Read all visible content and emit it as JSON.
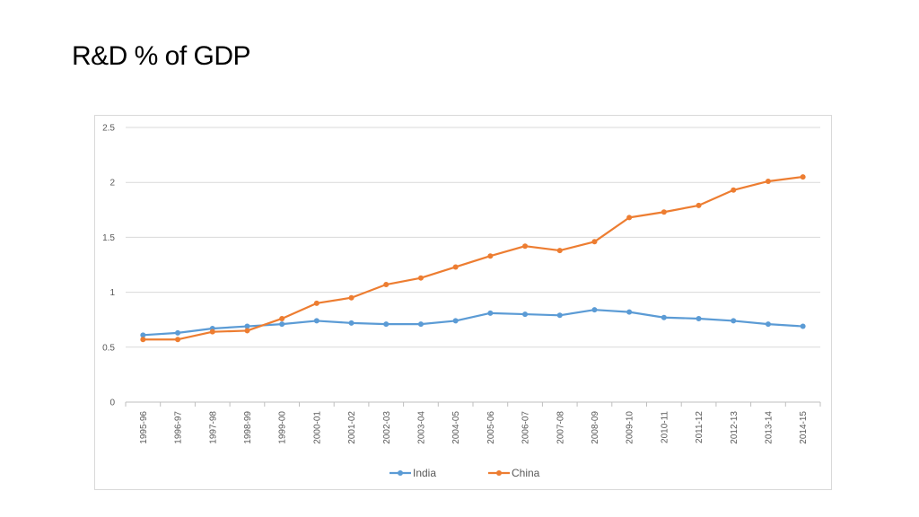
{
  "slide": {
    "title": "R&D % of GDP"
  },
  "chart_data": {
    "type": "line",
    "categories": [
      "1995-96",
      "1996-97",
      "1997-98",
      "1998-99",
      "1999-00",
      "2000-01",
      "2001-02",
      "2002-03",
      "2003-04",
      "2004-05",
      "2005-06",
      "2006-07",
      "2007-08",
      "2008-09",
      "2009-10",
      "2010-11",
      "2011-12",
      "2012-13",
      "2013-14",
      "2014-15"
    ],
    "series": [
      {
        "name": "India",
        "color": "#5b9bd5",
        "values": [
          0.61,
          0.63,
          0.67,
          0.69,
          0.71,
          0.74,
          0.72,
          0.71,
          0.71,
          0.74,
          0.81,
          0.8,
          0.79,
          0.84,
          0.82,
          0.77,
          0.76,
          0.74,
          0.71,
          0.69
        ]
      },
      {
        "name": "China",
        "color": "#ed7d31",
        "values": [
          0.57,
          0.57,
          0.64,
          0.65,
          0.76,
          0.9,
          0.95,
          1.07,
          1.13,
          1.23,
          1.33,
          1.42,
          1.38,
          1.46,
          1.68,
          1.73,
          1.79,
          1.93,
          2.01,
          2.05
        ]
      }
    ],
    "ylim": [
      0,
      2.5
    ],
    "yticks": [
      "0",
      "0.5",
      "1",
      "1.5",
      "2",
      "2.5"
    ],
    "ytick_values": [
      0,
      0.5,
      1,
      1.5,
      2,
      2.5
    ],
    "grid": true,
    "legend_position": "bottom",
    "title": "",
    "xlabel": "",
    "ylabel": ""
  }
}
